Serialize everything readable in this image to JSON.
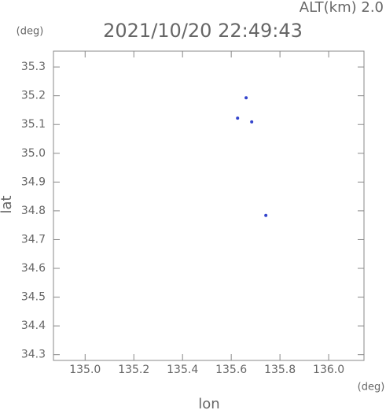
{
  "chart_data": {
    "type": "scatter",
    "title": "2021/10/20 22:49:43",
    "subtitle": "ALT(km) 2.0",
    "x_label": "lon",
    "y_label": "lat",
    "x_unit": "(deg)",
    "y_unit": "(deg)",
    "xlim": [
      134.87,
      136.145
    ],
    "ylim": [
      34.28,
      35.355
    ],
    "xticks": [
      {
        "value": 135.0,
        "label": "135.0"
      },
      135.2,
      135.4,
      135.6,
      135.8,
      {
        "value": 136.0,
        "label": "136.0"
      }
    ],
    "yticks": [
      34.3,
      34.4,
      34.5,
      34.6,
      34.7,
      34.8,
      34.9,
      {
        "value": 35.0,
        "label": "35.0"
      },
      35.1,
      35.2,
      35.3
    ],
    "series": [
      {
        "color": "#3344cc",
        "x": [
          135.661,
          135.626,
          135.684,
          135.742
        ],
        "values": [
          35.193,
          35.122,
          35.109,
          34.784
        ]
      }
    ]
  }
}
